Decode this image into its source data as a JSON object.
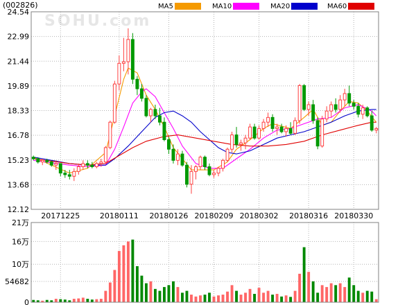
{
  "header": {
    "stock_code": "(002826)",
    "watermark": "SOHU.com",
    "legend": [
      {
        "name": "MA5",
        "color": "#f59a00"
      },
      {
        "name": "MA10",
        "color": "#ff00ff"
      },
      {
        "name": "MA20",
        "color": "#0000cc"
      },
      {
        "name": "MA60",
        "color": "#e00000"
      }
    ]
  },
  "colors": {
    "up": "#ff4040",
    "down": "#009900",
    "volume_up": "#ff6666",
    "volume_down": "#008800",
    "grid": "#b3b3b3"
  },
  "chart_data": [
    {
      "type": "candlestick",
      "title": "",
      "yticks": [
        "24.54",
        "22.99",
        "21.44",
        "19.89",
        "18.33",
        "16.78",
        "15.23",
        "13.68",
        "12.12"
      ],
      "ylim": [
        12.12,
        24.54
      ],
      "xticks": [
        {
          "label": "20171225",
          "index": 6
        },
        {
          "label": "20180111",
          "index": 19
        },
        {
          "label": "20180126",
          "index": 30
        },
        {
          "label": "20180209",
          "index": 40
        },
        {
          "label": "20180302",
          "index": 50
        },
        {
          "label": "20180316",
          "index": 61
        },
        {
          "label": "20180330",
          "index": 71
        }
      ],
      "candles": [
        [
          15.4,
          15.5,
          15.2,
          15.3
        ],
        [
          15.3,
          15.4,
          15.0,
          15.1
        ],
        [
          15.1,
          15.3,
          14.9,
          15.2
        ],
        [
          15.2,
          15.3,
          15.0,
          15.1
        ],
        [
          15.1,
          15.2,
          14.8,
          14.9
        ],
        [
          14.9,
          15.2,
          14.6,
          15.0
        ],
        [
          15.0,
          15.0,
          14.2,
          14.4
        ],
        [
          14.4,
          14.6,
          14.1,
          14.3
        ],
        [
          14.3,
          14.6,
          14.0,
          14.2
        ],
        [
          14.2,
          14.7,
          13.9,
          14.5
        ],
        [
          14.5,
          15.0,
          14.3,
          14.8
        ],
        [
          14.8,
          15.2,
          14.6,
          15.0
        ],
        [
          15.0,
          15.2,
          14.7,
          14.9
        ],
        [
          14.9,
          15.1,
          14.7,
          14.8
        ],
        [
          14.8,
          15.1,
          14.7,
          15.0
        ],
        [
          15.0,
          15.3,
          14.8,
          15.1
        ],
        [
          15.1,
          16.1,
          15.0,
          16.0
        ],
        [
          16.0,
          17.7,
          15.9,
          17.6
        ],
        [
          17.6,
          20.2,
          17.5,
          20.0
        ],
        [
          20.0,
          21.8,
          19.6,
          21.3
        ],
        [
          21.3,
          22.9,
          20.8,
          21.4
        ],
        [
          21.4,
          23.5,
          20.6,
          22.8
        ],
        [
          22.8,
          23.2,
          20.0,
          20.3
        ],
        [
          20.3,
          20.5,
          19.3,
          19.7
        ],
        [
          19.7,
          20.0,
          18.9,
          19.1
        ],
        [
          19.1,
          19.3,
          17.9,
          18.0
        ],
        [
          18.0,
          18.5,
          17.6,
          18.4
        ],
        [
          18.4,
          18.7,
          17.8,
          18.0
        ],
        [
          18.0,
          18.5,
          17.4,
          17.6
        ],
        [
          17.6,
          17.9,
          16.4,
          16.5
        ],
        [
          16.5,
          16.7,
          15.6,
          15.9
        ],
        [
          15.9,
          16.2,
          15.0,
          15.2
        ],
        [
          15.2,
          15.9,
          14.9,
          15.6
        ],
        [
          15.6,
          15.8,
          14.8,
          14.9
        ],
        [
          14.9,
          15.1,
          13.5,
          13.7
        ],
        [
          13.7,
          14.9,
          13.1,
          14.5
        ],
        [
          14.5,
          14.9,
          14.0,
          14.8
        ],
        [
          14.8,
          15.5,
          14.6,
          15.4
        ],
        [
          15.4,
          15.5,
          14.6,
          14.8
        ],
        [
          14.8,
          15.0,
          14.2,
          14.3
        ],
        [
          14.3,
          14.6,
          14.1,
          14.4
        ],
        [
          14.4,
          14.8,
          14.2,
          14.7
        ],
        [
          14.7,
          15.3,
          14.5,
          15.2
        ],
        [
          15.2,
          16.0,
          15.1,
          15.9
        ],
        [
          15.9,
          17.0,
          15.7,
          16.8
        ],
        [
          16.8,
          17.3,
          16.0,
          16.2
        ],
        [
          16.2,
          16.5,
          15.8,
          16.3
        ],
        [
          16.3,
          16.8,
          15.9,
          16.6
        ],
        [
          16.6,
          17.5,
          16.5,
          17.3
        ],
        [
          17.3,
          17.5,
          16.5,
          16.6
        ],
        [
          16.6,
          17.4,
          16.5,
          17.2
        ],
        [
          17.2,
          17.8,
          17.0,
          17.6
        ],
        [
          17.6,
          18.2,
          17.3,
          17.9
        ],
        [
          17.9,
          18.1,
          17.0,
          17.2
        ],
        [
          17.2,
          17.5,
          16.8,
          17.3
        ],
        [
          17.3,
          17.5,
          16.9,
          17.0
        ],
        [
          17.0,
          17.4,
          16.7,
          17.2
        ],
        [
          17.2,
          17.6,
          16.8,
          16.9
        ],
        [
          16.9,
          17.9,
          16.8,
          17.7
        ],
        [
          17.7,
          20.0,
          17.5,
          19.9
        ],
        [
          19.9,
          20.0,
          18.3,
          18.4
        ],
        [
          18.4,
          18.9,
          18.0,
          18.7
        ],
        [
          18.7,
          19.0,
          17.5,
          17.7
        ],
        [
          17.7,
          17.9,
          15.9,
          16.1
        ],
        [
          16.1,
          18.0,
          16.0,
          17.8
        ],
        [
          17.8,
          18.6,
          17.6,
          18.3
        ],
        [
          18.3,
          18.9,
          17.9,
          18.7
        ],
        [
          18.7,
          19.1,
          18.2,
          18.4
        ],
        [
          18.4,
          19.3,
          18.2,
          19.0
        ],
        [
          19.0,
          19.7,
          18.6,
          19.4
        ],
        [
          19.4,
          19.9,
          18.6,
          18.8
        ],
        [
          18.8,
          19.0,
          18.4,
          18.6
        ],
        [
          18.6,
          18.8,
          17.9,
          18.1
        ],
        [
          18.1,
          18.7,
          17.8,
          18.5
        ],
        [
          18.5,
          18.6,
          17.9,
          18.0
        ],
        [
          18.0,
          18.3,
          17.0,
          17.1
        ],
        [
          17.1,
          17.3,
          16.9,
          17.2
        ]
      ],
      "ma": {
        "MA5": [
          [
            0,
            15.4
          ],
          [
            8,
            14.4
          ],
          [
            12,
            14.7
          ],
          [
            16,
            15.7
          ],
          [
            18,
            18.0
          ],
          [
            20,
            20.3
          ],
          [
            21,
            21.0
          ],
          [
            23,
            20.7
          ],
          [
            25,
            19.3
          ],
          [
            27,
            18.4
          ],
          [
            29,
            17.3
          ],
          [
            31,
            16.0
          ],
          [
            33,
            15.3
          ],
          [
            35,
            14.6
          ],
          [
            37,
            14.6
          ],
          [
            40,
            14.6
          ],
          [
            43,
            15.1
          ],
          [
            45,
            15.9
          ],
          [
            48,
            16.5
          ],
          [
            51,
            17.2
          ],
          [
            53,
            17.5
          ],
          [
            57,
            17.2
          ],
          [
            60,
            17.9
          ],
          [
            62,
            18.4
          ],
          [
            64,
            17.4
          ],
          [
            66,
            17.6
          ],
          [
            68,
            18.3
          ],
          [
            70,
            18.9
          ],
          [
            72,
            18.8
          ],
          [
            74,
            18.3
          ],
          [
            76,
            17.6
          ]
        ],
        "MA10": [
          [
            0,
            15.2
          ],
          [
            8,
            14.9
          ],
          [
            12,
            14.8
          ],
          [
            16,
            14.9
          ],
          [
            18,
            15.9
          ],
          [
            20,
            17.3
          ],
          [
            22,
            18.8
          ],
          [
            24,
            19.5
          ],
          [
            25,
            19.7
          ],
          [
            27,
            19.2
          ],
          [
            29,
            18.2
          ],
          [
            31,
            17.2
          ],
          [
            33,
            16.1
          ],
          [
            36,
            15.0
          ],
          [
            39,
            14.7
          ],
          [
            42,
            14.7
          ],
          [
            45,
            15.3
          ],
          [
            48,
            15.9
          ],
          [
            51,
            16.6
          ],
          [
            54,
            17.1
          ],
          [
            57,
            17.2
          ],
          [
            60,
            17.5
          ],
          [
            63,
            17.8
          ],
          [
            66,
            17.9
          ],
          [
            69,
            18.5
          ],
          [
            72,
            18.7
          ],
          [
            75,
            18.3
          ],
          [
            76,
            18.0
          ]
        ],
        "MA20": [
          [
            0,
            15.4
          ],
          [
            8,
            15.0
          ],
          [
            12,
            14.9
          ],
          [
            16,
            14.9
          ],
          [
            18,
            15.3
          ],
          [
            21,
            16.1
          ],
          [
            24,
            17.0
          ],
          [
            27,
            17.9
          ],
          [
            29,
            18.2
          ],
          [
            31,
            18.3
          ],
          [
            33,
            18.0
          ],
          [
            35,
            17.6
          ],
          [
            37,
            17.0
          ],
          [
            39,
            16.5
          ],
          [
            41,
            16.0
          ],
          [
            43,
            15.7
          ],
          [
            45,
            15.6
          ],
          [
            48,
            15.8
          ],
          [
            51,
            16.2
          ],
          [
            54,
            16.6
          ],
          [
            57,
            16.8
          ],
          [
            60,
            17.0
          ],
          [
            63,
            17.3
          ],
          [
            66,
            17.6
          ],
          [
            69,
            18.0
          ],
          [
            72,
            18.3
          ],
          [
            75,
            18.4
          ],
          [
            76,
            18.4
          ]
        ],
        "MA60": [
          [
            0,
            15.3
          ],
          [
            8,
            15.0
          ],
          [
            12,
            14.9
          ],
          [
            16,
            15.0
          ],
          [
            19,
            15.5
          ],
          [
            22,
            16.0
          ],
          [
            25,
            16.4
          ],
          [
            29,
            16.7
          ],
          [
            32,
            16.8
          ],
          [
            36,
            16.6
          ],
          [
            40,
            16.4
          ],
          [
            44,
            16.2
          ],
          [
            48,
            16.1
          ],
          [
            52,
            16.1
          ],
          [
            56,
            16.2
          ],
          [
            60,
            16.4
          ],
          [
            64,
            16.8
          ],
          [
            68,
            17.1
          ],
          [
            72,
            17.4
          ],
          [
            75,
            17.6
          ],
          [
            76,
            17.6
          ]
        ]
      }
    },
    {
      "type": "bar",
      "title": "",
      "yticks": [
        "21万",
        "16万",
        "10万",
        "54682",
        "0"
      ],
      "ylim": [
        0,
        210000
      ],
      "volumes": [
        6000,
        5000,
        4000,
        6000,
        5000,
        9000,
        8000,
        7000,
        5000,
        9000,
        10000,
        12000,
        9000,
        7000,
        8000,
        9000,
        30000,
        52000,
        85000,
        135000,
        150000,
        160000,
        165000,
        95000,
        70000,
        50000,
        55000,
        35000,
        30000,
        40000,
        45000,
        55000,
        40000,
        25000,
        30000,
        20000,
        15000,
        18000,
        20000,
        25000,
        15000,
        18000,
        20000,
        28000,
        45000,
        30000,
        20000,
        25000,
        35000,
        22000,
        38000,
        25000,
        30000,
        20000,
        22000,
        15000,
        18000,
        14000,
        30000,
        75000,
        145000,
        80000,
        55000,
        25000,
        45000,
        40000,
        50000,
        45000,
        50000,
        40000,
        65000,
        45000,
        30000,
        25000,
        30000,
        28000,
        8000
      ],
      "up": [
        false,
        false,
        true,
        false,
        false,
        true,
        false,
        false,
        false,
        true,
        true,
        true,
        false,
        false,
        true,
        true,
        true,
        true,
        true,
        true,
        true,
        true,
        false,
        false,
        false,
        false,
        true,
        false,
        false,
        false,
        false,
        false,
        true,
        false,
        false,
        true,
        true,
        true,
        false,
        false,
        true,
        true,
        true,
        true,
        true,
        false,
        true,
        true,
        true,
        false,
        true,
        true,
        true,
        false,
        true,
        false,
        true,
        false,
        true,
        true,
        false,
        true,
        false,
        false,
        true,
        true,
        true,
        false,
        true,
        true,
        false,
        false,
        false,
        true,
        false,
        false,
        true
      ]
    }
  ]
}
